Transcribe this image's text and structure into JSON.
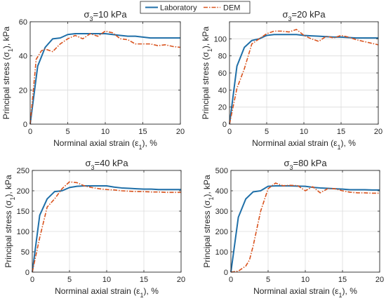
{
  "legend": {
    "placement": "top-center",
    "entries": [
      {
        "label": "Laboratory",
        "color": "#1f6fa8",
        "style": "solid"
      },
      {
        "label": "DEM",
        "color": "#d9531e",
        "style": "dash-dot"
      }
    ]
  },
  "chart_data": [
    {
      "type": "line",
      "title": "σ3=10 kPa",
      "title_main": "σ",
      "title_sub": "3",
      "title_rest": "=10 kPa",
      "xlabel": "Norminal axial strain (ε1), %",
      "xlabel_pre": "Norminal axial strain (ε",
      "xlabel_sub": "1",
      "xlabel_post": "), %",
      "ylabel": "Principal stress (σ1), kPa",
      "ylabel_pre": "Principal stress (σ",
      "ylabel_sub": "1",
      "ylabel_post": "), kPa",
      "xlim": [
        0,
        20
      ],
      "ylim": [
        0,
        60
      ],
      "xticks": [
        0,
        5,
        10,
        15,
        20
      ],
      "yticks": [
        0,
        20,
        40,
        60
      ],
      "grid": true,
      "series": [
        {
          "name": "Laboratory",
          "color": "#1f6fa8",
          "x": [
            0,
            1,
            2,
            3,
            4,
            5,
            6,
            7,
            8,
            9,
            10,
            11,
            12,
            13,
            14,
            15,
            16,
            17,
            18,
            19,
            20
          ],
          "y": [
            0,
            34,
            45,
            50,
            50.5,
            52.5,
            53,
            53,
            53,
            53,
            53,
            52.5,
            52,
            51.5,
            51.5,
            51,
            50.5,
            50.5,
            50.5,
            50.5,
            50.5
          ]
        },
        {
          "name": "DEM",
          "color": "#d9531e",
          "x": [
            0,
            0.8,
            1.5,
            2,
            3,
            4,
            5,
            6,
            7,
            8,
            9,
            10,
            11,
            12,
            13,
            14,
            15,
            16,
            17,
            18,
            19,
            20
          ],
          "y": [
            0,
            38,
            43,
            44,
            42.5,
            47,
            50,
            52,
            50,
            53,
            51.5,
            54.5,
            53.5,
            50,
            49.5,
            47,
            47,
            47,
            46,
            46.5,
            45.5,
            45
          ]
        }
      ]
    },
    {
      "type": "line",
      "title": "σ3=20 kPa",
      "title_main": "σ",
      "title_sub": "3",
      "title_rest": "=20 kPa",
      "xlabel": "Norminal axial strain (ε1), %",
      "xlabel_pre": "Norminal axial strain (ε",
      "xlabel_sub": "1",
      "xlabel_post": "), %",
      "ylabel": "Principal stress (σ1), kPa",
      "ylabel_pre": "Principal stress (σ",
      "ylabel_sub": "1",
      "ylabel_post": "), kPa",
      "xlim": [
        0,
        20
      ],
      "ylim": [
        0,
        120
      ],
      "xticks": [
        0,
        5,
        10,
        15,
        20
      ],
      "yticks": [
        0,
        20,
        40,
        60,
        80,
        100
      ],
      "grid": true,
      "series": [
        {
          "name": "Laboratory",
          "color": "#1f6fa8",
          "x": [
            0,
            1,
            2,
            3,
            4,
            5,
            6,
            7,
            8,
            9,
            10,
            11,
            12,
            13,
            14,
            15,
            16,
            17,
            18,
            19,
            20
          ],
          "y": [
            0,
            68,
            90,
            98,
            100,
            104,
            105,
            105,
            105,
            105,
            104,
            103.5,
            103,
            102.5,
            102,
            102,
            101.5,
            101,
            101,
            101,
            101
          ]
        },
        {
          "name": "DEM",
          "color": "#d9531e",
          "x": [
            0,
            1,
            2,
            3,
            4,
            5,
            6,
            7,
            8,
            9,
            10,
            11,
            12,
            13,
            14,
            15,
            16,
            17,
            18,
            19,
            20
          ],
          "y": [
            0,
            42,
            65,
            94,
            100,
            106,
            109,
            109,
            108,
            111,
            104,
            100,
            97,
            103,
            101,
            104,
            102,
            99,
            97,
            95,
            93
          ]
        }
      ]
    },
    {
      "type": "line",
      "title": "σ3=40 kPa",
      "title_main": "σ",
      "title_sub": "3",
      "title_rest": "=40 kPa",
      "xlabel": "Norminal axial strain (ε1), %",
      "xlabel_pre": "Norminal axial strain (ε",
      "xlabel_sub": "1",
      "xlabel_post": "), %",
      "ylabel": "Principal stress (σ1), kPa",
      "ylabel_pre": "Principal stress (σ",
      "ylabel_sub": "1",
      "ylabel_post": "), kPa",
      "xlim": [
        0,
        20
      ],
      "ylim": [
        0,
        250
      ],
      "xticks": [
        0,
        5,
        10,
        15,
        20
      ],
      "yticks": [
        0,
        50,
        100,
        150,
        200,
        250
      ],
      "grid": true,
      "series": [
        {
          "name": "Laboratory",
          "color": "#1f6fa8",
          "x": [
            0,
            1,
            2,
            3,
            4,
            5,
            6,
            7,
            8,
            9,
            10,
            11,
            12,
            13,
            14,
            15,
            16,
            17,
            18,
            19,
            20
          ],
          "y": [
            0,
            140,
            180,
            198,
            200,
            208,
            211,
            212,
            212,
            212,
            212,
            209,
            207,
            206,
            205,
            204,
            204,
            203,
            203,
            203,
            203
          ]
        },
        {
          "name": "DEM",
          "color": "#d9531e",
          "x": [
            0,
            1,
            2,
            3,
            4,
            5,
            6,
            7,
            8,
            9,
            10,
            11,
            12,
            13,
            14,
            15,
            16,
            17,
            18,
            19,
            20
          ],
          "y": [
            0,
            85,
            160,
            180,
            205,
            222,
            220,
            212,
            208,
            205,
            203,
            202,
            200,
            199,
            198,
            198,
            197,
            197,
            196,
            196,
            196
          ]
        }
      ]
    },
    {
      "type": "line",
      "title": "σ3=80 kPa",
      "title_main": "σ",
      "title_sub": "3",
      "title_rest": "=80 kPa",
      "xlabel": "Norminal axial strain (ε1), %",
      "xlabel_pre": "Norminal axial strain (ε",
      "xlabel_sub": "1",
      "xlabel_post": "), %",
      "ylabel": "Principal stress (σ1), kPa",
      "ylabel_pre": "Principal stress (σ",
      "ylabel_sub": "1",
      "ylabel_post": "), kPa",
      "xlim": [
        0,
        20
      ],
      "ylim": [
        0,
        500
      ],
      "xticks": [
        0,
        5,
        10,
        15,
        20
      ],
      "yticks": [
        0,
        100,
        200,
        300,
        400,
        500
      ],
      "grid": true,
      "series": [
        {
          "name": "Laboratory",
          "color": "#1f6fa8",
          "x": [
            0,
            1,
            2,
            3,
            4,
            5,
            6,
            7,
            8,
            9,
            10,
            11,
            12,
            13,
            14,
            15,
            16,
            17,
            18,
            19,
            20
          ],
          "y": [
            0,
            270,
            360,
            395,
            400,
            422,
            424,
            424,
            424,
            423,
            422,
            417,
            414,
            412,
            410,
            408,
            405,
            405,
            405,
            404,
            404
          ]
        },
        {
          "name": "DEM",
          "color": "#d9531e",
          "x": [
            0,
            1,
            2,
            2.5,
            3,
            4,
            5,
            6,
            7,
            8,
            9,
            10,
            11,
            12,
            13,
            14,
            15,
            16,
            17,
            18,
            19,
            20
          ],
          "y": [
            0,
            5,
            30,
            60,
            130,
            300,
            410,
            438,
            425,
            427,
            425,
            400,
            420,
            390,
            410,
            410,
            400,
            393,
            390,
            390,
            388,
            388
          ]
        }
      ]
    }
  ]
}
